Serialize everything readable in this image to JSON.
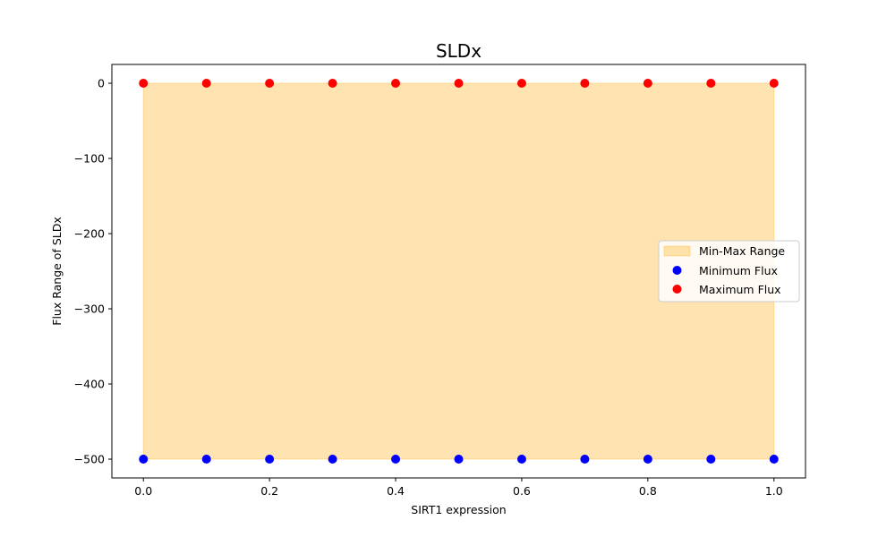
{
  "chart_data": {
    "type": "scatter",
    "title": "SLDx",
    "xlabel": "SIRT1 expression",
    "ylabel": "Flux Range of SLDx",
    "x": [
      0.0,
      0.1,
      0.2,
      0.3,
      0.4,
      0.5,
      0.6,
      0.7,
      0.8,
      0.9,
      1.0
    ],
    "xlim": [
      -0.05,
      1.05
    ],
    "ylim": [
      -525,
      25
    ],
    "xticks": [
      0.0,
      0.2,
      0.4,
      0.6,
      0.8,
      1.0
    ],
    "xtick_labels": [
      "0.0",
      "0.2",
      "0.4",
      "0.6",
      "0.8",
      "1.0"
    ],
    "yticks": [
      0,
      -100,
      -200,
      -300,
      -400,
      -500
    ],
    "ytick_labels": [
      "0",
      "−100",
      "−200",
      "−300",
      "−400",
      "−500"
    ],
    "grid": false,
    "legend_position": "center-right",
    "fill": {
      "name": "Min-Max Range",
      "color": "#FFA500",
      "alpha": 0.3,
      "lower": [
        -500,
        -500,
        -500,
        -500,
        -500,
        -500,
        -500,
        -500,
        -500,
        -500,
        -500
      ],
      "upper": [
        0,
        0,
        0,
        0,
        0,
        0,
        0,
        0,
        0,
        0,
        0
      ]
    },
    "series": [
      {
        "name": "Minimum Flux",
        "color": "#0000FF",
        "values": [
          -500,
          -500,
          -500,
          -500,
          -500,
          -500,
          -500,
          -500,
          -500,
          -500,
          -500
        ]
      },
      {
        "name": "Maximum Flux",
        "color": "#FF0000",
        "values": [
          0,
          0,
          0,
          0,
          0,
          0,
          0,
          0,
          0,
          0,
          0
        ]
      }
    ]
  }
}
